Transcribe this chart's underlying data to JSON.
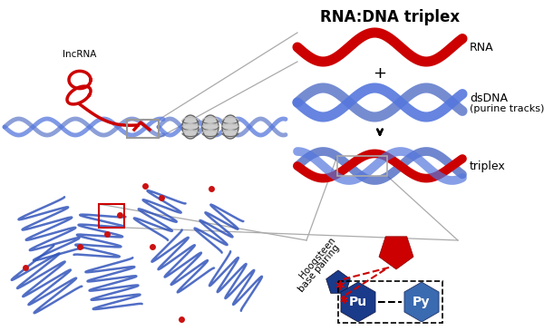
{
  "title": "RNA:DNA triplex",
  "title_fontsize": 12,
  "bg_color": "#ffffff",
  "rna_color": "#cc0000",
  "dna_color": "#3355bb",
  "dna_color2": "#5577dd",
  "gray_color": "#999999",
  "gray_dark": "#666666",
  "red_dot_color": "#cc1111",
  "pu_color": "#1a3a8a",
  "py_color": "#3a6ab0",
  "label_rna": "RNA",
  "label_dsdna1": "dsDNA",
  "label_dsdna2": "(purine tracks)",
  "label_triplex": "triplex",
  "label_lncrna": "lncRNA",
  "label_pu": "Pu",
  "label_py": "Py",
  "label_hoogsteen1": "Hoogsteen",
  "label_hoogsteen2": "base pairing"
}
